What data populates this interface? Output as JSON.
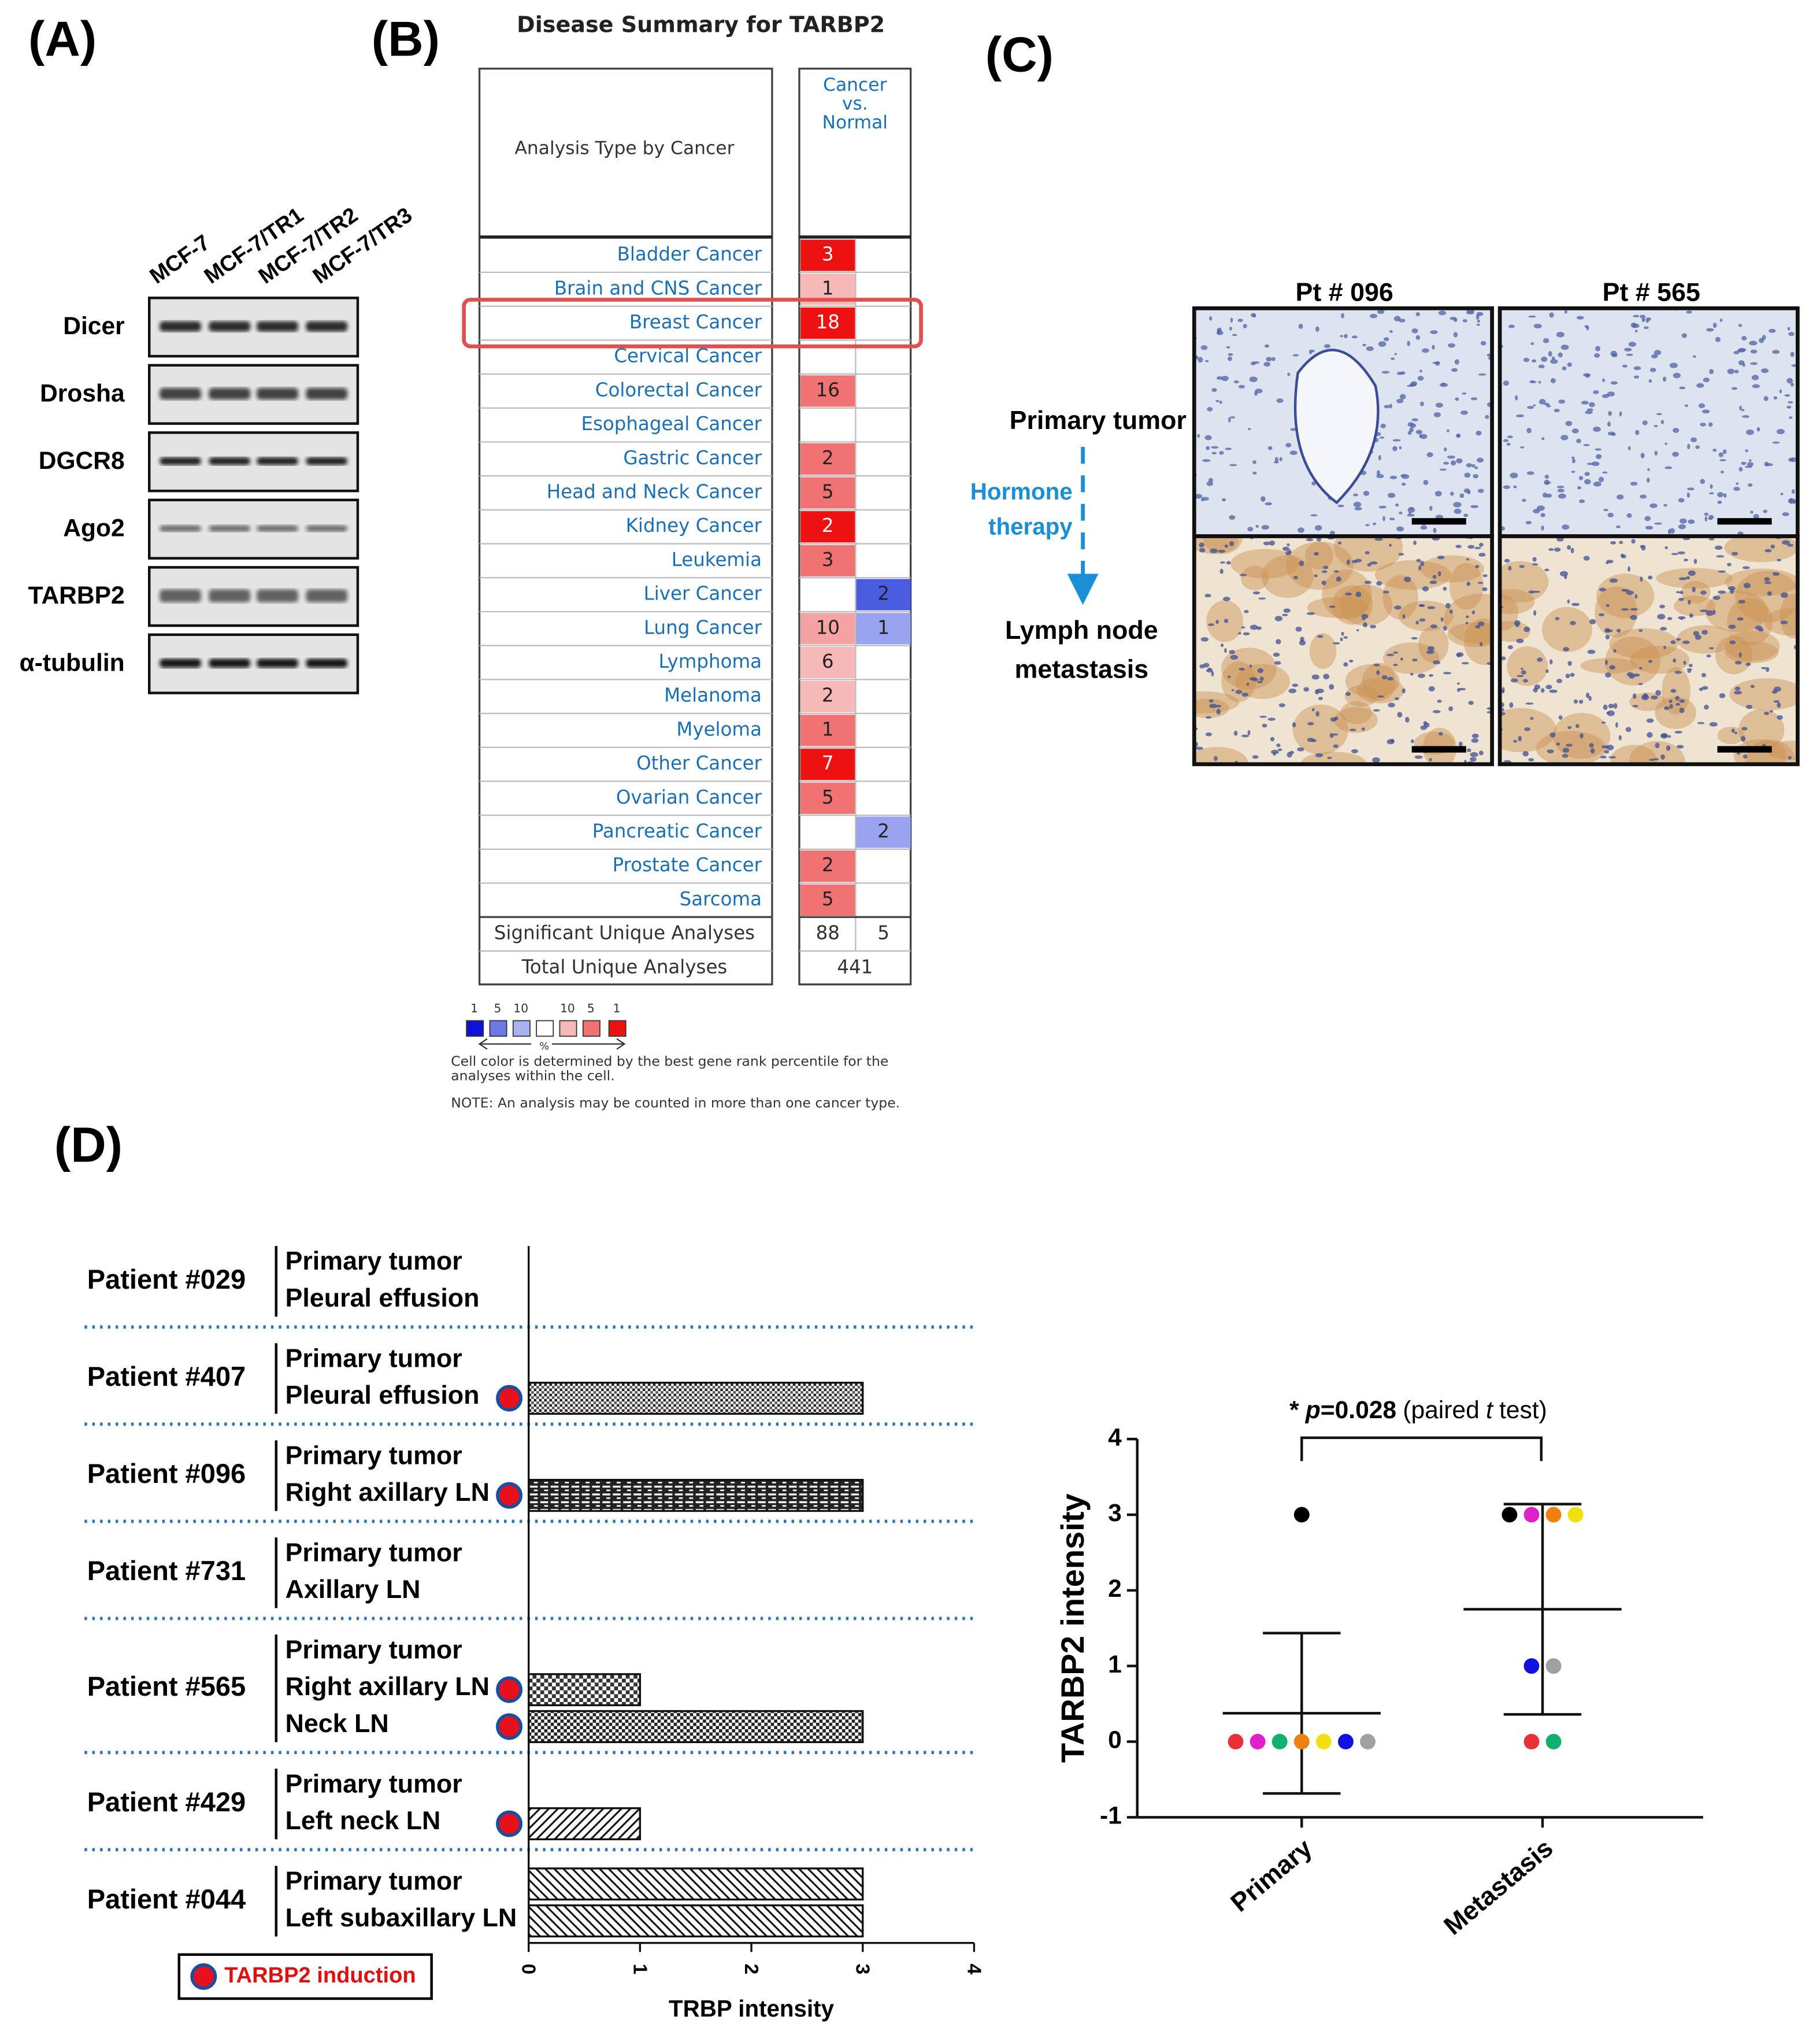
{
  "panel_labels": [
    "(A)",
    "(B)",
    "(C)",
    "(D)"
  ],
  "western_blot": {
    "cell_lines": [
      "MCF-7",
      "MCF-7/TR1",
      "MCF-7/TR2",
      "MCF-7/TR3"
    ],
    "proteins": [
      "Dicer",
      "Drosha",
      "DGCR8",
      "Ago2",
      "TARBP2",
      "α-tubulin"
    ]
  },
  "disease_summary": {
    "title": "Disease Summary for TARBP2",
    "row_header": "Analysis Type by Cancer",
    "column_header": [
      "Cancer",
      "vs.",
      "Normal"
    ],
    "rows": [
      {
        "name": "Bladder Cancer",
        "up": 3,
        "down": null,
        "up_color": "#ee1111",
        "down_color": null
      },
      {
        "name": "Brain and CNS Cancer",
        "up": 1,
        "down": null,
        "up_color": "#f7b8b8",
        "down_color": null
      },
      {
        "name": "Breast Cancer",
        "up": 18,
        "down": null,
        "up_color": "#ee1111",
        "down_color": null
      },
      {
        "name": "Cervical Cancer",
        "up": null,
        "down": null,
        "up_color": null,
        "down_color": null
      },
      {
        "name": "Colorectal Cancer",
        "up": 16,
        "down": null,
        "up_color": "#f07272",
        "down_color": null
      },
      {
        "name": "Esophageal Cancer",
        "up": null,
        "down": null,
        "up_color": null,
        "down_color": null
      },
      {
        "name": "Gastric Cancer",
        "up": 2,
        "down": null,
        "up_color": "#f07272",
        "down_color": null
      },
      {
        "name": "Head and Neck Cancer",
        "up": 5,
        "down": null,
        "up_color": "#f07272",
        "down_color": null
      },
      {
        "name": "Kidney Cancer",
        "up": 2,
        "down": null,
        "up_color": "#ee1111",
        "down_color": null
      },
      {
        "name": "Leukemia",
        "up": 3,
        "down": null,
        "up_color": "#f07272",
        "down_color": null
      },
      {
        "name": "Liver Cancer",
        "up": null,
        "down": 2,
        "up_color": null,
        "down_color": "#4a5ce0"
      },
      {
        "name": "Lung Cancer",
        "up": 10,
        "down": 1,
        "up_color": "#f4a2a2",
        "down_color": "#9aa3f0"
      },
      {
        "name": "Lymphoma",
        "up": 6,
        "down": null,
        "up_color": "#f7b8b8",
        "down_color": null
      },
      {
        "name": "Melanoma",
        "up": 2,
        "down": null,
        "up_color": "#f7b8b8",
        "down_color": null
      },
      {
        "name": "Myeloma",
        "up": 1,
        "down": null,
        "up_color": "#f07272",
        "down_color": null
      },
      {
        "name": "Other Cancer",
        "up": 7,
        "down": null,
        "up_color": "#ee1111",
        "down_color": null
      },
      {
        "name": "Ovarian Cancer",
        "up": 5,
        "down": null,
        "up_color": "#f07272",
        "down_color": null
      },
      {
        "name": "Pancreatic Cancer",
        "up": null,
        "down": 2,
        "up_color": null,
        "down_color": "#9aa3f0"
      },
      {
        "name": "Prostate Cancer",
        "up": 2,
        "down": null,
        "up_color": "#f07272",
        "down_color": null
      },
      {
        "name": "Sarcoma",
        "up": 5,
        "down": null,
        "up_color": "#f07272",
        "down_color": null
      }
    ],
    "significant": {
      "label": "Significant Unique Analyses",
      "up": 88,
      "down": 5
    },
    "total": {
      "label": "Total Unique Analyses",
      "value": 441
    },
    "highlight_row": 2,
    "legend": {
      "labels": [
        1,
        5,
        10,
        10,
        5,
        1
      ],
      "unit": "%",
      "colors": [
        "#1010d8",
        "#6c78e6",
        "#aab2f2",
        "#ffffff",
        "#f7b8b8",
        "#f07272",
        "#ee1111"
      ]
    },
    "notes": [
      "Cell color is determined by the best gene rank percentile for the",
      "analyses within the cell.",
      "NOTE: An analysis may be counted in more than one cancer type."
    ]
  },
  "ihc": {
    "patients": [
      "Pt # 096",
      "Pt # 565"
    ],
    "primary_label": "Primary tumor",
    "treatment": [
      "Hormone",
      "therapy"
    ],
    "metastasis_label": [
      "Lymph node",
      "metastasis"
    ]
  },
  "chart_data": [
    {
      "type": "bar",
      "orientation": "horizontal",
      "xlabel": "TRBP intensity",
      "xlim": [
        0,
        4
      ],
      "xticks": [
        0,
        1,
        2,
        3,
        4
      ],
      "groups": [
        {
          "name": "Patient #029",
          "samples": [
            "Primary tumor",
            "Pleural effusion"
          ],
          "values": [
            0,
            0
          ],
          "induction": [
            false,
            false
          ]
        },
        {
          "name": "Patient #407",
          "samples": [
            "Primary tumor",
            "Pleural effusion"
          ],
          "values": [
            0,
            3
          ],
          "induction": [
            false,
            true
          ]
        },
        {
          "name": "Patient #096",
          "samples": [
            "Primary tumor",
            "Right axillary LN"
          ],
          "values": [
            0,
            3
          ],
          "induction": [
            false,
            true
          ]
        },
        {
          "name": "Patient #731",
          "samples": [
            "Primary tumor",
            "Axillary LN"
          ],
          "values": [
            0,
            0
          ],
          "induction": [
            false,
            false
          ]
        },
        {
          "name": "Patient #565",
          "samples": [
            "Primary tumor",
            "Right axillary LN",
            "Neck LN"
          ],
          "values": [
            0,
            1,
            3
          ],
          "induction": [
            false,
            true,
            true
          ]
        },
        {
          "name": "Patient #429",
          "samples": [
            "Primary tumor",
            "Left neck LN"
          ],
          "values": [
            0,
            1
          ],
          "induction": [
            false,
            true
          ]
        },
        {
          "name": "Patient #044",
          "samples": [
            "Primary tumor",
            "Left subaxillary LN"
          ],
          "values": [
            3,
            3
          ],
          "induction": [
            false,
            false
          ]
        }
      ],
      "legend": {
        "label": "TARBP2 induction",
        "marker_color": "#e8101a",
        "edge_color": "#1a4fa0",
        "position": "lower left"
      }
    },
    {
      "type": "scatter",
      "ylabel": "TARBP2 intensity",
      "categories": [
        "Primary",
        "Metastasis"
      ],
      "ylim": [
        -1,
        4
      ],
      "yticks": [
        -1,
        0,
        1,
        2,
        3,
        4
      ],
      "series": [
        {
          "color": "#000000",
          "values": [
            3,
            3
          ]
        },
        {
          "color": "#e8303a",
          "values": [
            0,
            0
          ]
        },
        {
          "color": "#e020c8",
          "values": [
            0,
            3
          ]
        },
        {
          "color": "#10b070",
          "values": [
            0,
            0
          ]
        },
        {
          "color": "#f08010",
          "values": [
            0,
            3
          ]
        },
        {
          "color": "#f0e010",
          "values": [
            0,
            3
          ]
        },
        {
          "color": "#1010e0",
          "values": [
            0,
            1
          ]
        },
        {
          "color": "#a0a0a0",
          "values": [
            0,
            1
          ]
        }
      ],
      "mean": [
        0.375,
        1.75
      ],
      "sd": [
        1.06,
        1.39
      ],
      "annotation": [
        "*",
        "p",
        "=0.028",
        "(paired",
        "t",
        "test)"
      ]
    }
  ]
}
